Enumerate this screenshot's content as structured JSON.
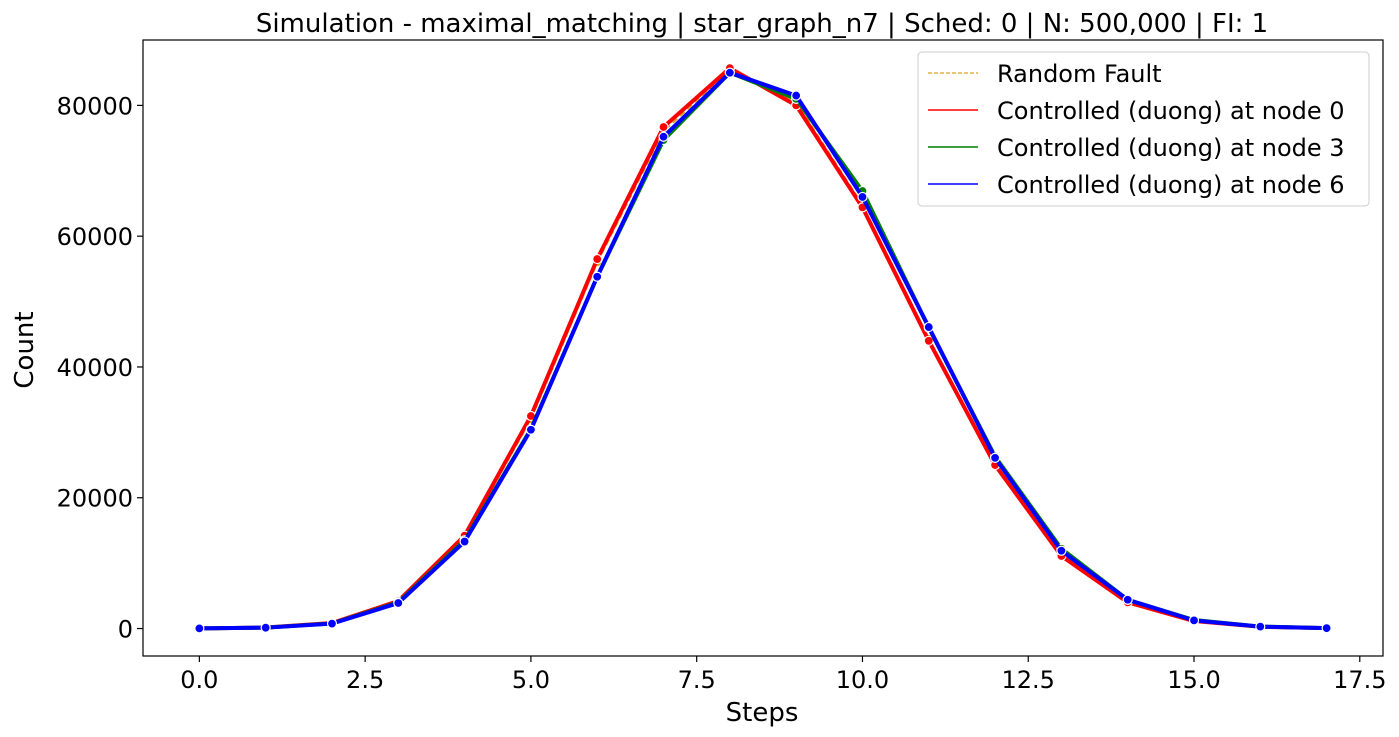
{
  "chart_data": {
    "type": "line",
    "title": "Simulation - maximal_matching | star_graph_n7 | Sched: 0 | N: 500,000 | FI: 1",
    "xlabel": "Steps",
    "ylabel": "Count",
    "xlim": [
      -0.85,
      17.85
    ],
    "ylim": [
      -4200,
      90000
    ],
    "xticks": [
      0.0,
      2.5,
      5.0,
      7.5,
      10.0,
      12.5,
      15.0,
      17.5
    ],
    "xtick_labels": [
      "0.0",
      "2.5",
      "5.0",
      "7.5",
      "10.0",
      "12.5",
      "15.0",
      "17.5"
    ],
    "yticks": [
      0,
      20000,
      40000,
      60000,
      80000
    ],
    "ytick_labels": [
      "0",
      "20000",
      "40000",
      "60000",
      "80000"
    ],
    "grid": false,
    "legend_position": "top-right",
    "x": [
      0,
      1,
      2,
      3,
      4,
      5,
      6,
      7,
      8,
      9,
      10,
      11,
      12,
      13,
      14,
      15,
      16,
      17
    ],
    "series": [
      {
        "name": "Random Fault",
        "color": "#DAA520",
        "style": "dashed",
        "values": [
          20,
          150,
          850,
          4100,
          14000,
          32000,
          56000,
          76000,
          85500,
          80500,
          64800,
          44300,
          25200,
          11300,
          4100,
          1200,
          280,
          60
        ]
      },
      {
        "name": "Controlled (duong) at node 0",
        "color": "#ff0000",
        "style": "solid",
        "values": [
          20,
          150,
          850,
          4200,
          14200,
          32500,
          56500,
          76700,
          85700,
          80000,
          64400,
          44000,
          25000,
          11100,
          4000,
          1150,
          270,
          55
        ]
      },
      {
        "name": "Controlled (duong) at node 3",
        "color": "#008000",
        "style": "solid",
        "values": [
          20,
          140,
          780,
          4000,
          13500,
          30500,
          53800,
          74700,
          85000,
          81000,
          66900,
          46000,
          26300,
          12200,
          4400,
          1300,
          300,
          60
        ]
      },
      {
        "name": "Controlled (duong) at node 6",
        "color": "#0000ff",
        "style": "solid",
        "values": [
          20,
          130,
          750,
          3900,
          13300,
          30400,
          53800,
          75200,
          85000,
          81500,
          66000,
          46100,
          26100,
          11900,
          4400,
          1250,
          290,
          55
        ]
      }
    ]
  }
}
